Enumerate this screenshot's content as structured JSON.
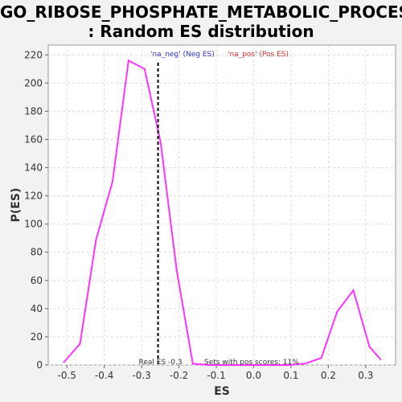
{
  "chart_data": {
    "type": "line",
    "title": "GO_RIBOSE_PHOSPHATE_METABOLIC_PROCESS",
    "subtitle": ": Random ES distribution",
    "xlabel": "ES",
    "ylabel": "P(ES)",
    "xlim": [
      -0.55,
      0.38
    ],
    "ylim": [
      0,
      227
    ],
    "x_ticks": [
      -0.5,
      -0.4,
      -0.3,
      -0.2,
      -0.1,
      0.0,
      0.1,
      0.2,
      0.3
    ],
    "x_tick_labels": [
      "-0.5",
      "-0.4",
      "-0.3",
      "-0.2",
      "-0.1",
      "0.0",
      "0.1",
      "0.2",
      "0.3"
    ],
    "y_ticks": [
      0,
      20,
      40,
      60,
      80,
      100,
      120,
      140,
      160,
      180,
      200,
      220
    ],
    "y_tick_labels": [
      "0",
      "20",
      "40",
      "60",
      "80",
      "100",
      "120",
      "140",
      "160",
      "180",
      "200",
      "220"
    ],
    "grid": true,
    "series": [
      {
        "color": "#ff33ff",
        "x": [
          -0.508,
          -0.465,
          -0.422,
          -0.378,
          -0.335,
          -0.292,
          -0.249,
          -0.206,
          -0.163,
          -0.12,
          -0.077,
          -0.034,
          0.009,
          0.052,
          0.095,
          0.138,
          0.181,
          0.224,
          0.267,
          0.31,
          0.34
        ],
        "y": [
          2,
          15,
          89,
          130,
          216,
          210,
          158,
          67,
          1,
          0,
          0,
          0,
          0,
          0,
          0,
          1,
          5,
          38,
          53,
          13,
          4
        ]
      }
    ],
    "real_es": {
      "x": -0.256,
      "label": "Real ES -0.3"
    },
    "annotation": "Sets with pos scores: 11%",
    "legend": {
      "placement": "top",
      "items": [
        {
          "label": "'na_neg' (Neg ES)",
          "color": "#3333cc"
        },
        {
          "label": "'na_pos' (Pos ES)",
          "color": "#e03030"
        }
      ]
    },
    "colors": {
      "plot_background": "#ffffff",
      "page_background": "#f2f2f2",
      "grid": "#dddddd",
      "line": "#ff33ff",
      "real_es_line": "#000000"
    }
  }
}
